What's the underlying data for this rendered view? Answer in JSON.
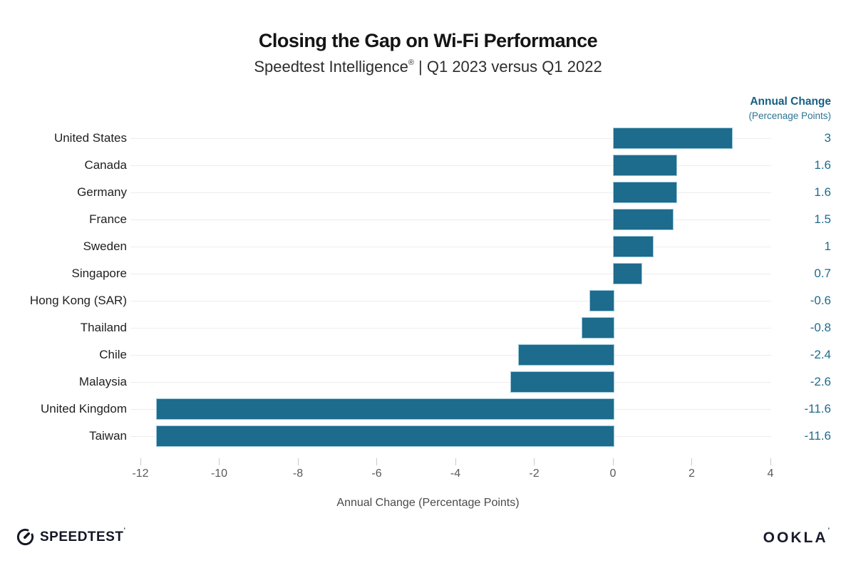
{
  "title": "Closing the Gap on Wi-Fi Performance",
  "subtitle": {
    "brand": "Speedtest Intelligence",
    "reg": "®",
    "rest": " | Q1 2023 versus Q1 2022"
  },
  "value_header": {
    "line1": "Annual Change",
    "line2": "(Percenage Points)"
  },
  "chart_data": {
    "type": "bar",
    "orientation": "horizontal",
    "categories": [
      "United States",
      "Canada",
      "Germany",
      "France",
      "Sweden",
      "Singapore",
      "Hong Kong (SAR)",
      "Thailand",
      "Chile",
      "Malaysia",
      "United Kingdom",
      "Taiwan"
    ],
    "values": [
      3,
      1.6,
      1.6,
      1.5,
      1,
      0.7,
      -0.6,
      -0.8,
      -2.4,
      -2.6,
      -11.6,
      -11.6
    ],
    "value_labels": [
      "3",
      "1.6",
      "1.6",
      "1.5",
      "1",
      "0.7",
      "-0.6",
      "-0.8",
      "-2.4",
      "-2.6",
      "-11.6",
      "-11.6"
    ],
    "title": "Closing the Gap on Wi-Fi Performance",
    "subtitle": "Speedtest Intelligence® | Q1 2023 versus Q1 2022",
    "xlabel": "Annual Change (Percentage Points)",
    "ylabel": "",
    "xlim": [
      -12.2,
      4.2
    ],
    "xticks": [
      -12,
      -10,
      -8,
      -6,
      -4,
      -2,
      0,
      2,
      4
    ],
    "grid": "horizontal-category-lines",
    "legend": "none",
    "bar_color": "#1d6b8d",
    "bar_edge_color": "#9dc8da",
    "value_text_color": "#1d6b8d"
  },
  "footer": {
    "speedtest": "SPEEDTEST",
    "speedtest_mark": "’",
    "ookla": "OOKLA",
    "ookla_mark": "’"
  }
}
